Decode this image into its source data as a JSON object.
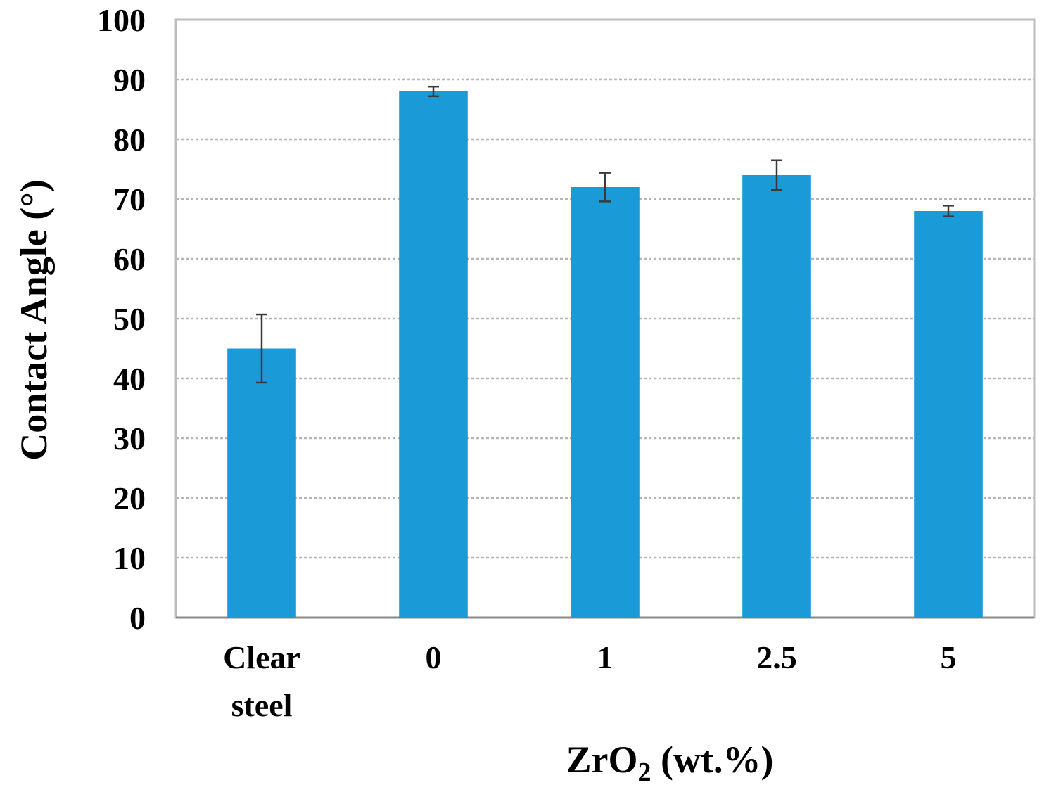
{
  "chart_data": {
    "type": "bar",
    "categories": [
      "Clear steel",
      "0",
      "1",
      "2.5",
      "5"
    ],
    "category_lines": [
      [
        "Clear",
        "steel"
      ],
      [
        "0"
      ],
      [
        "1"
      ],
      [
        "2.5"
      ],
      [
        "5"
      ]
    ],
    "values": [
      45,
      88,
      72,
      74,
      68
    ],
    "errors": [
      5.7,
      0.8,
      2.4,
      2.5,
      0.9
    ],
    "ylabel": "Contact Angle (°)",
    "xlabel": {
      "prefix": "ZrO",
      "subscript": "2",
      "suffix": " (wt.%)"
    },
    "ylim": [
      0,
      100
    ],
    "yticks": [
      0,
      10,
      20,
      30,
      40,
      50,
      60,
      70,
      80,
      90,
      100
    ],
    "grid": true,
    "legend": "none",
    "bar_color": "#1a9ad6",
    "grid_color": "#b5b5b5",
    "frame_color": "#bdbdbd",
    "errorbar_color": "#3a3a3a"
  }
}
